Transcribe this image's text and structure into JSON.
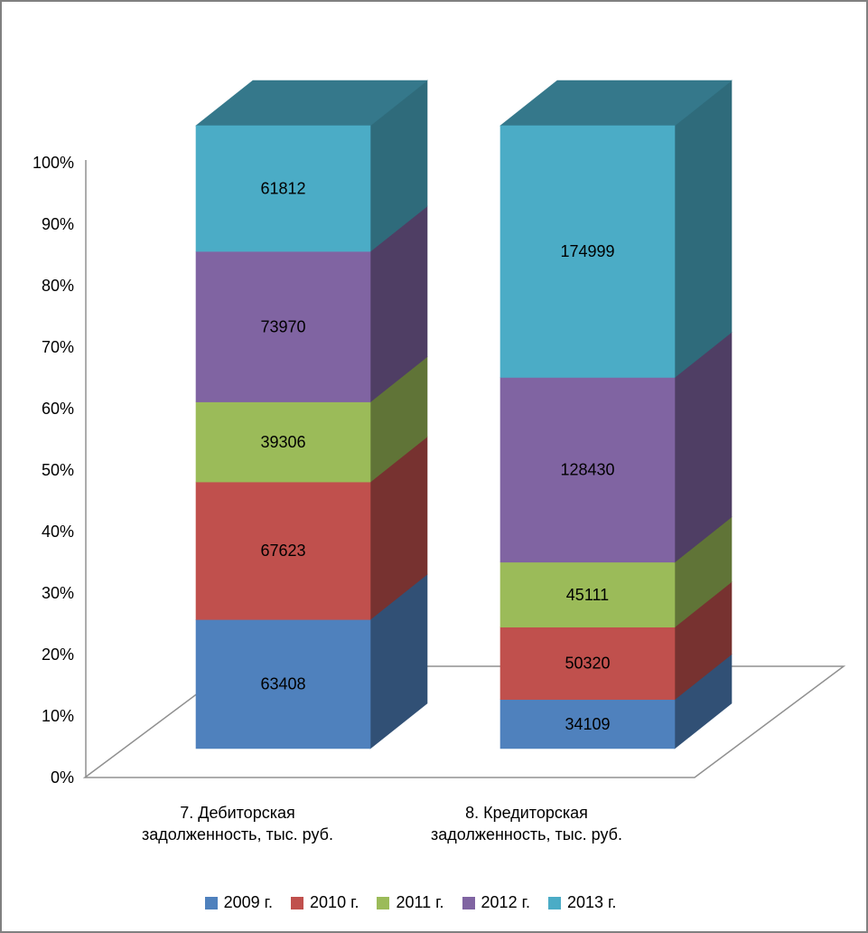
{
  "chart": {
    "background": "#FFFFFF",
    "frame_border_color": "#808080",
    "axis_line_color": "#909090",
    "label_color": "#000000"
  },
  "chart_data": {
    "type": "bar",
    "subtype": "100%-stacked-3d-column",
    "title": "",
    "grid": false,
    "effect": "3d",
    "categories": [
      {
        "lines": [
          "7. Дебиторская",
          "задолженность, тыс. руб."
        ]
      },
      {
        "lines": [
          "8. Кредиторская",
          "задолженность, тыс. руб."
        ]
      }
    ],
    "series": [
      {
        "name": "2009 г.",
        "color": "#4F81BD",
        "values": [
          63408,
          34109
        ]
      },
      {
        "name": "2010 г.",
        "color": "#C0504D",
        "values": [
          67623,
          50320
        ]
      },
      {
        "name": "2011 г.",
        "color": "#9BBB59",
        "values": [
          39306,
          45111
        ]
      },
      {
        "name": "2012 г.",
        "color": "#8064A2",
        "values": [
          73970,
          128430
        ]
      },
      {
        "name": "2013 г.",
        "color": "#4BACC6",
        "values": [
          61812,
          174999
        ]
      }
    ],
    "y_axis": {
      "unit": "%",
      "min": 0,
      "max": 100,
      "ticks": [
        "0%",
        "10%",
        "20%",
        "30%",
        "40%",
        "50%",
        "60%",
        "70%",
        "80%",
        "90%",
        "100%"
      ]
    },
    "legend": {
      "position": "bottom"
    }
  }
}
